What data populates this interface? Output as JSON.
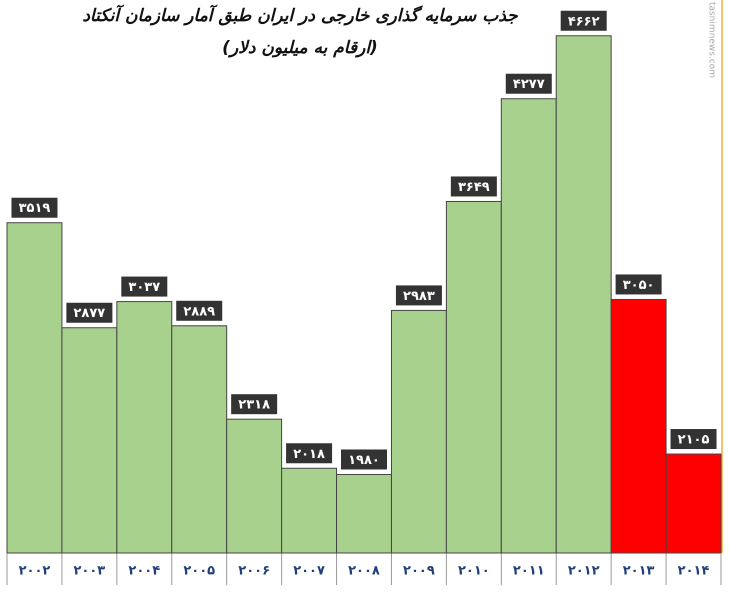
{
  "chart_data": {
    "type": "bar",
    "title": "جذب سرمایه گذاری خارجی در ایران طبق آمار سازمان آنکتاد",
    "subtitle": "(ارقام به میلیون دلار)",
    "watermark": "tasnimnews.com",
    "categories": [
      "۲۰۰۲",
      "۲۰۰۳",
      "۲۰۰۴",
      "۲۰۰۵",
      "۲۰۰۶",
      "۲۰۰۷",
      "۲۰۰۸",
      "۲۰۰۹",
      "۲۰۱۰",
      "۲۰۱۱",
      "۲۰۱۲",
      "۲۰۱۳",
      "۲۰۱۴"
    ],
    "values": [
      3519,
      2877,
      3037,
      2889,
      2318,
      2018,
      1980,
      2983,
      3649,
      4277,
      4662,
      3050,
      2105
    ],
    "value_labels": [
      "۳۵۱۹",
      "۲۸۷۷",
      "۳۰۳۷",
      "۲۸۸۹",
      "۲۳۱۸",
      "۲۰۱۸",
      "۱۹۸۰",
      "۲۹۸۳",
      "۳۶۴۹",
      "۴۲۷۷",
      "۴۶۶۲",
      "۳۰۵۰",
      "۲۱۰۵"
    ],
    "colors": [
      "#a9d18e",
      "#a9d18e",
      "#a9d18e",
      "#a9d18e",
      "#a9d18e",
      "#a9d18e",
      "#a9d18e",
      "#a9d18e",
      "#a9d18e",
      "#a9d18e",
      "#a9d18e",
      "#ff0000",
      "#ff0000"
    ],
    "ylim": [
      1500,
      4850
    ]
  }
}
